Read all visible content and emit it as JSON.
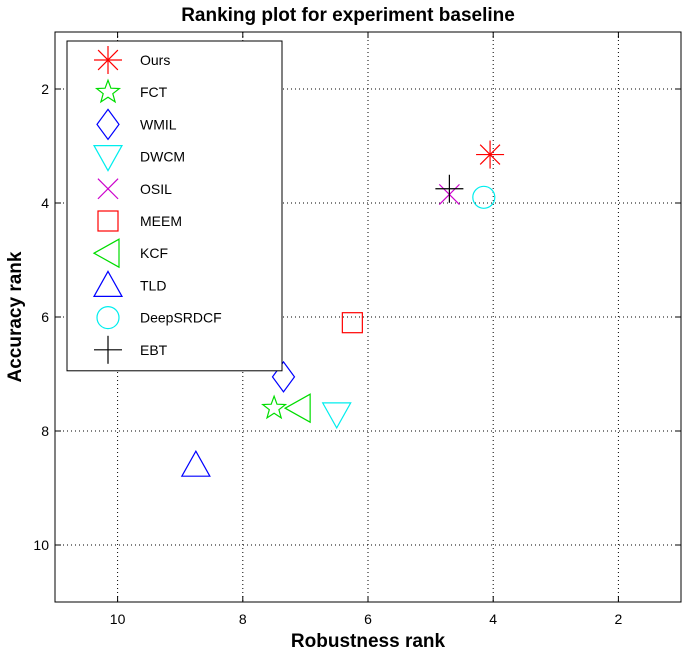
{
  "chart_data": {
    "type": "scatter",
    "title": "Ranking plot for experiment baseline",
    "xlabel": "Robustness rank",
    "ylabel": "Accuracy rank",
    "xlim": [
      11,
      1
    ],
    "ylim": [
      11,
      1
    ],
    "x_reversed": true,
    "y_reversed": true,
    "xticks": [
      10,
      8,
      6,
      4,
      2
    ],
    "yticks": [
      2,
      4,
      6,
      8,
      10
    ],
    "grid": true,
    "legend_position": "top-left",
    "series": [
      {
        "name": "Ours",
        "marker": "asterisk",
        "color": "#ff0000",
        "x": 4.05,
        "y": 3.15
      },
      {
        "name": "FCT",
        "marker": "star",
        "color": "#00dd00",
        "x": 7.5,
        "y": 7.6
      },
      {
        "name": "WMIL",
        "marker": "diamond",
        "color": "#0000ff",
        "x": 7.35,
        "y": 7.05
      },
      {
        "name": "DWCM",
        "marker": "triangle-down",
        "color": "#00eeee",
        "x": 6.5,
        "y": 7.7
      },
      {
        "name": "OSIL",
        "marker": "x",
        "color": "#cc00cc",
        "x": 4.7,
        "y": 3.85
      },
      {
        "name": "MEEM",
        "marker": "square",
        "color": "#ff0000",
        "x": 6.25,
        "y": 6.1
      },
      {
        "name": "KCF",
        "marker": "triangle-left",
        "color": "#00dd00",
        "x": 7.1,
        "y": 7.6
      },
      {
        "name": "TLD",
        "marker": "triangle-up",
        "color": "#0000ff",
        "x": 8.75,
        "y": 8.6
      },
      {
        "name": "DeepSRDCF",
        "marker": "circle",
        "color": "#00eeee",
        "x": 4.15,
        "y": 3.9
      },
      {
        "name": "EBT",
        "marker": "plus",
        "color": "#000000",
        "x": 4.7,
        "y": 3.75
      }
    ]
  }
}
